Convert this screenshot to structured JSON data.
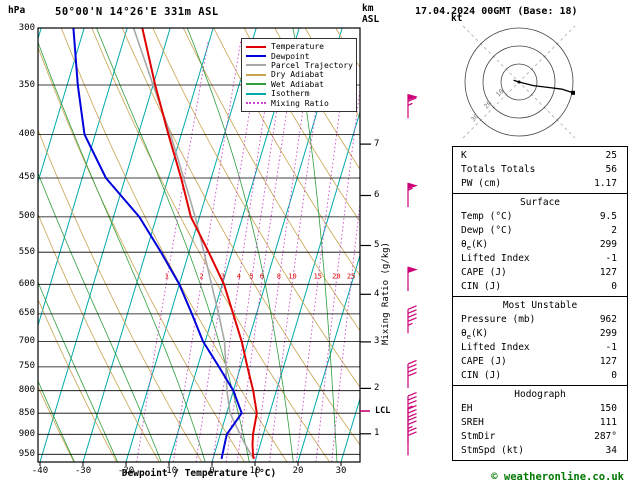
{
  "header": {
    "pressure_unit": "hPa",
    "station": "50°00'N 14°26'E 331m ASL",
    "altitude_unit_lines": [
      "km",
      "ASL"
    ],
    "datetime": "17.04.2024 00GMT (Base: 18)"
  },
  "colors": {
    "temperature": "#e00000",
    "dewpoint": "#0000dd",
    "parcel": "#a8a8a8",
    "dry_adiabat": "#c8a450",
    "wet_adiabat": "#2e9e3e",
    "isotherm": "#00aaaa",
    "mixing_ratio": "#cc44cc",
    "mixing_label": "#dd0000",
    "wind_barb": "#cc0077",
    "grid": "#000000",
    "copyright": "#007700"
  },
  "legend": [
    {
      "label": "Temperature",
      "color_key": "temperature",
      "dotted": false
    },
    {
      "label": "Dewpoint",
      "color_key": "dewpoint",
      "dotted": false
    },
    {
      "label": "Parcel Trajectory",
      "color_key": "parcel",
      "dotted": false
    },
    {
      "label": "Dry Adiabat",
      "color_key": "dry_adiabat",
      "dotted": false
    },
    {
      "label": "Wet Adiabat",
      "color_key": "wet_adiabat",
      "dotted": false
    },
    {
      "label": "Isotherm",
      "color_key": "isotherm",
      "dotted": false
    },
    {
      "label": "Mixing Ratio",
      "color_key": "mixing_ratio",
      "dotted": true
    }
  ],
  "axes": {
    "pressure_ticks": [
      300,
      350,
      400,
      450,
      500,
      550,
      600,
      650,
      700,
      750,
      800,
      850,
      900,
      950
    ],
    "temp_ticks": [
      -40,
      -30,
      -20,
      -10,
      0,
      10,
      20,
      30
    ],
    "km_ticks": [
      7,
      6,
      5,
      4,
      3,
      2,
      1
    ],
    "xlabel": "Dewpoint / Temperature (°C)",
    "mixing_ratio_label": "Mixing Ratio (g/kg)",
    "lcl_label": "LCL"
  },
  "chart_data": {
    "type": "skewt_log_p",
    "pressure_range_hpa": [
      300,
      970
    ],
    "temp_axis_range_c": [
      -40,
      35
    ],
    "mixing_ratio_lines_gkg": [
      1,
      2,
      3,
      4,
      5,
      6,
      8,
      10,
      15,
      20,
      25
    ],
    "lcl_pressure_hpa": 845,
    "sounding": {
      "pressure": [
        962,
        950,
        925,
        900,
        850,
        800,
        750,
        700,
        650,
        600,
        550,
        500,
        450,
        400,
        350,
        300
      ],
      "temperature": [
        9.5,
        9.0,
        8.2,
        7.6,
        7.0,
        4.6,
        1.6,
        -1.5,
        -5.4,
        -9.6,
        -15.4,
        -22.0,
        -27.0,
        -33.0,
        -39.5,
        -46.5
      ],
      "dewpoint": [
        2.0,
        1.9,
        1.7,
        1.5,
        3.5,
        0.0,
        -5.0,
        -10.5,
        -15.0,
        -20.0,
        -26.5,
        -34.0,
        -44.5,
        -52.5,
        -57.5,
        -62.5
      ],
      "parcel": [
        9.5,
        8.5,
        6.5,
        4.6,
        0.8,
        -1.5,
        -3.4,
        -5.5,
        -8.8,
        -12.5,
        -16.5,
        -21.0,
        -26.4,
        -32.5,
        -40.0,
        -48.5
      ]
    },
    "wind_barbs": [
      {
        "pressure": 953,
        "speed_kt": 20
      },
      {
        "pressure": 925,
        "speed_kt": 25
      },
      {
        "pressure": 897,
        "speed_kt": 30
      },
      {
        "pressure": 866,
        "speed_kt": 35
      },
      {
        "pressure": 794,
        "speed_kt": 40
      },
      {
        "pressure": 685,
        "speed_kt": 45
      },
      {
        "pressure": 611,
        "speed_kt": 50
      },
      {
        "pressure": 487,
        "speed_kt": 55
      },
      {
        "pressure": 383,
        "speed_kt": 65
      }
    ],
    "hodograph": {
      "unit": "kt",
      "rings_kt": [
        10,
        20,
        30
      ],
      "ring_labels": [
        "10",
        "20",
        "30"
      ],
      "trace_uv_kt": [
        [
          -3,
          1
        ],
        [
          0,
          0
        ],
        [
          8,
          -2
        ],
        [
          16,
          -3
        ],
        [
          24,
          -4
        ],
        [
          30,
          -6
        ]
      ]
    }
  },
  "panel": {
    "indices": {
      "rows": [
        [
          "K",
          "25"
        ],
        [
          "Totals Totals",
          "56"
        ],
        [
          "PW (cm)",
          "1.17"
        ]
      ]
    },
    "surface": {
      "title": "Surface",
      "rows": [
        [
          "Temp (°C)",
          "9.5"
        ],
        [
          "Dewp (°C)",
          "2"
        ],
        [
          "θ",
          "e",
          "(K)",
          "299"
        ],
        [
          "Lifted Index",
          "-1"
        ],
        [
          "CAPE (J)",
          "127"
        ],
        [
          "CIN (J)",
          "0"
        ]
      ]
    },
    "most_unstable": {
      "title": "Most Unstable",
      "rows": [
        [
          "Pressure (mb)",
          "962"
        ],
        [
          "θ",
          "e",
          "(K)",
          "299"
        ],
        [
          "Lifted Index",
          "-1"
        ],
        [
          "CAPE (J)",
          "127"
        ],
        [
          "CIN (J)",
          "0"
        ]
      ]
    },
    "hodograph": {
      "title": "Hodograph",
      "rows": [
        [
          "EH",
          "150"
        ],
        [
          "SREH",
          "111"
        ],
        [
          "StmDir",
          "287°"
        ],
        [
          "StmSpd (kt)",
          "34"
        ]
      ]
    }
  },
  "footer": {
    "copyright": "© weatheronline.co.uk"
  }
}
